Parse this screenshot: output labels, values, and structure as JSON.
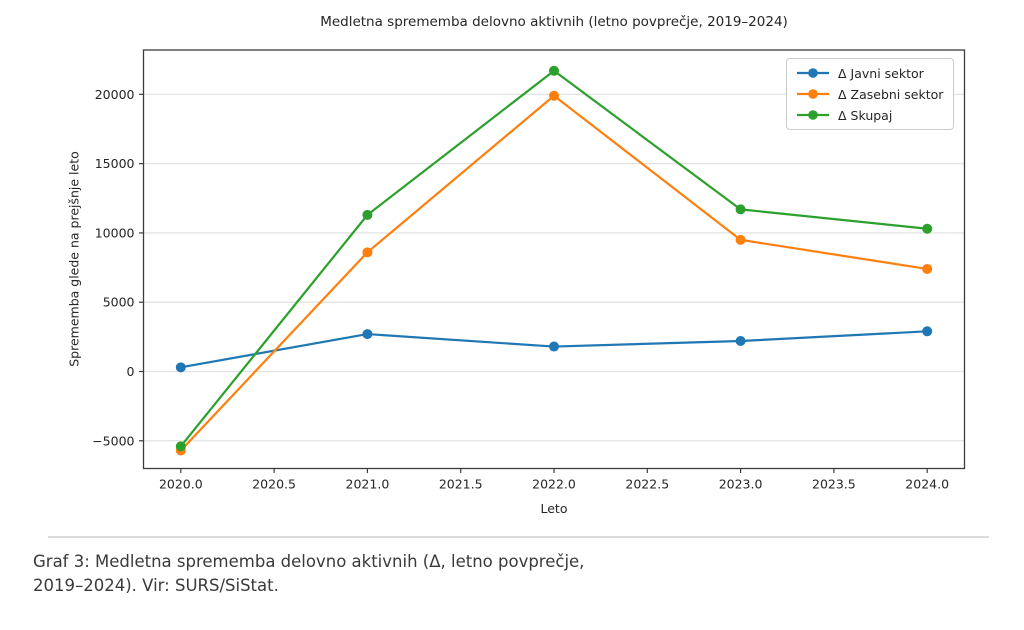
{
  "chart_data": {
    "type": "line",
    "title": "Medletna sprememba delovno aktivnih (letno povprečje, 2019–2024)",
    "xlabel": "Leto",
    "ylabel": "Sprememba glede na prejšnje leto",
    "x": [
      2020,
      2021,
      2022,
      2023,
      2024
    ],
    "series": [
      {
        "name": "Δ Javni sektor",
        "color": "#1f77b4",
        "values": [
          300,
          2700,
          1800,
          2200,
          2900
        ]
      },
      {
        "name": "Δ Zasebni sektor",
        "color": "#ff7f0e",
        "values": [
          -5700,
          8600,
          19900,
          9500,
          7400
        ]
      },
      {
        "name": "Δ Skupaj",
        "color": "#2ca02c",
        "values": [
          -5400,
          11300,
          21700,
          11700,
          10300
        ]
      }
    ],
    "xlim": [
      2019.8,
      2024.2
    ],
    "ylim": [
      -7000,
      23200
    ],
    "xticks": [
      2020.0,
      2020.5,
      2021.0,
      2021.5,
      2022.0,
      2022.5,
      2023.0,
      2023.5,
      2024.0
    ],
    "xtick_labels": [
      "2020.0",
      "2020.5",
      "2021.0",
      "2021.5",
      "2022.0",
      "2022.5",
      "2023.0",
      "2023.5",
      "2024.0"
    ],
    "yticks": [
      -5000,
      0,
      5000,
      10000,
      15000,
      20000
    ],
    "ytick_labels": [
      "−5000",
      "0",
      "5000",
      "10000",
      "15000",
      "20000"
    ],
    "grid": "horizontal",
    "legend_position": "upper right",
    "marker": "circle"
  },
  "caption": {
    "line1": "Graf 3: Medletna sprememba delovno aktivnih (Δ, letno povprečje,",
    "line2": "2019–2024). Vir: SURS/SiStat."
  },
  "colors": {
    "grid": "#e3e3e3",
    "spine": "#3c3c3c",
    "tick": "#3c3c3c",
    "text": "#262626",
    "caption_text": "#3a3a3a",
    "rule": "#dcdcdc",
    "background": "#ffffff"
  }
}
